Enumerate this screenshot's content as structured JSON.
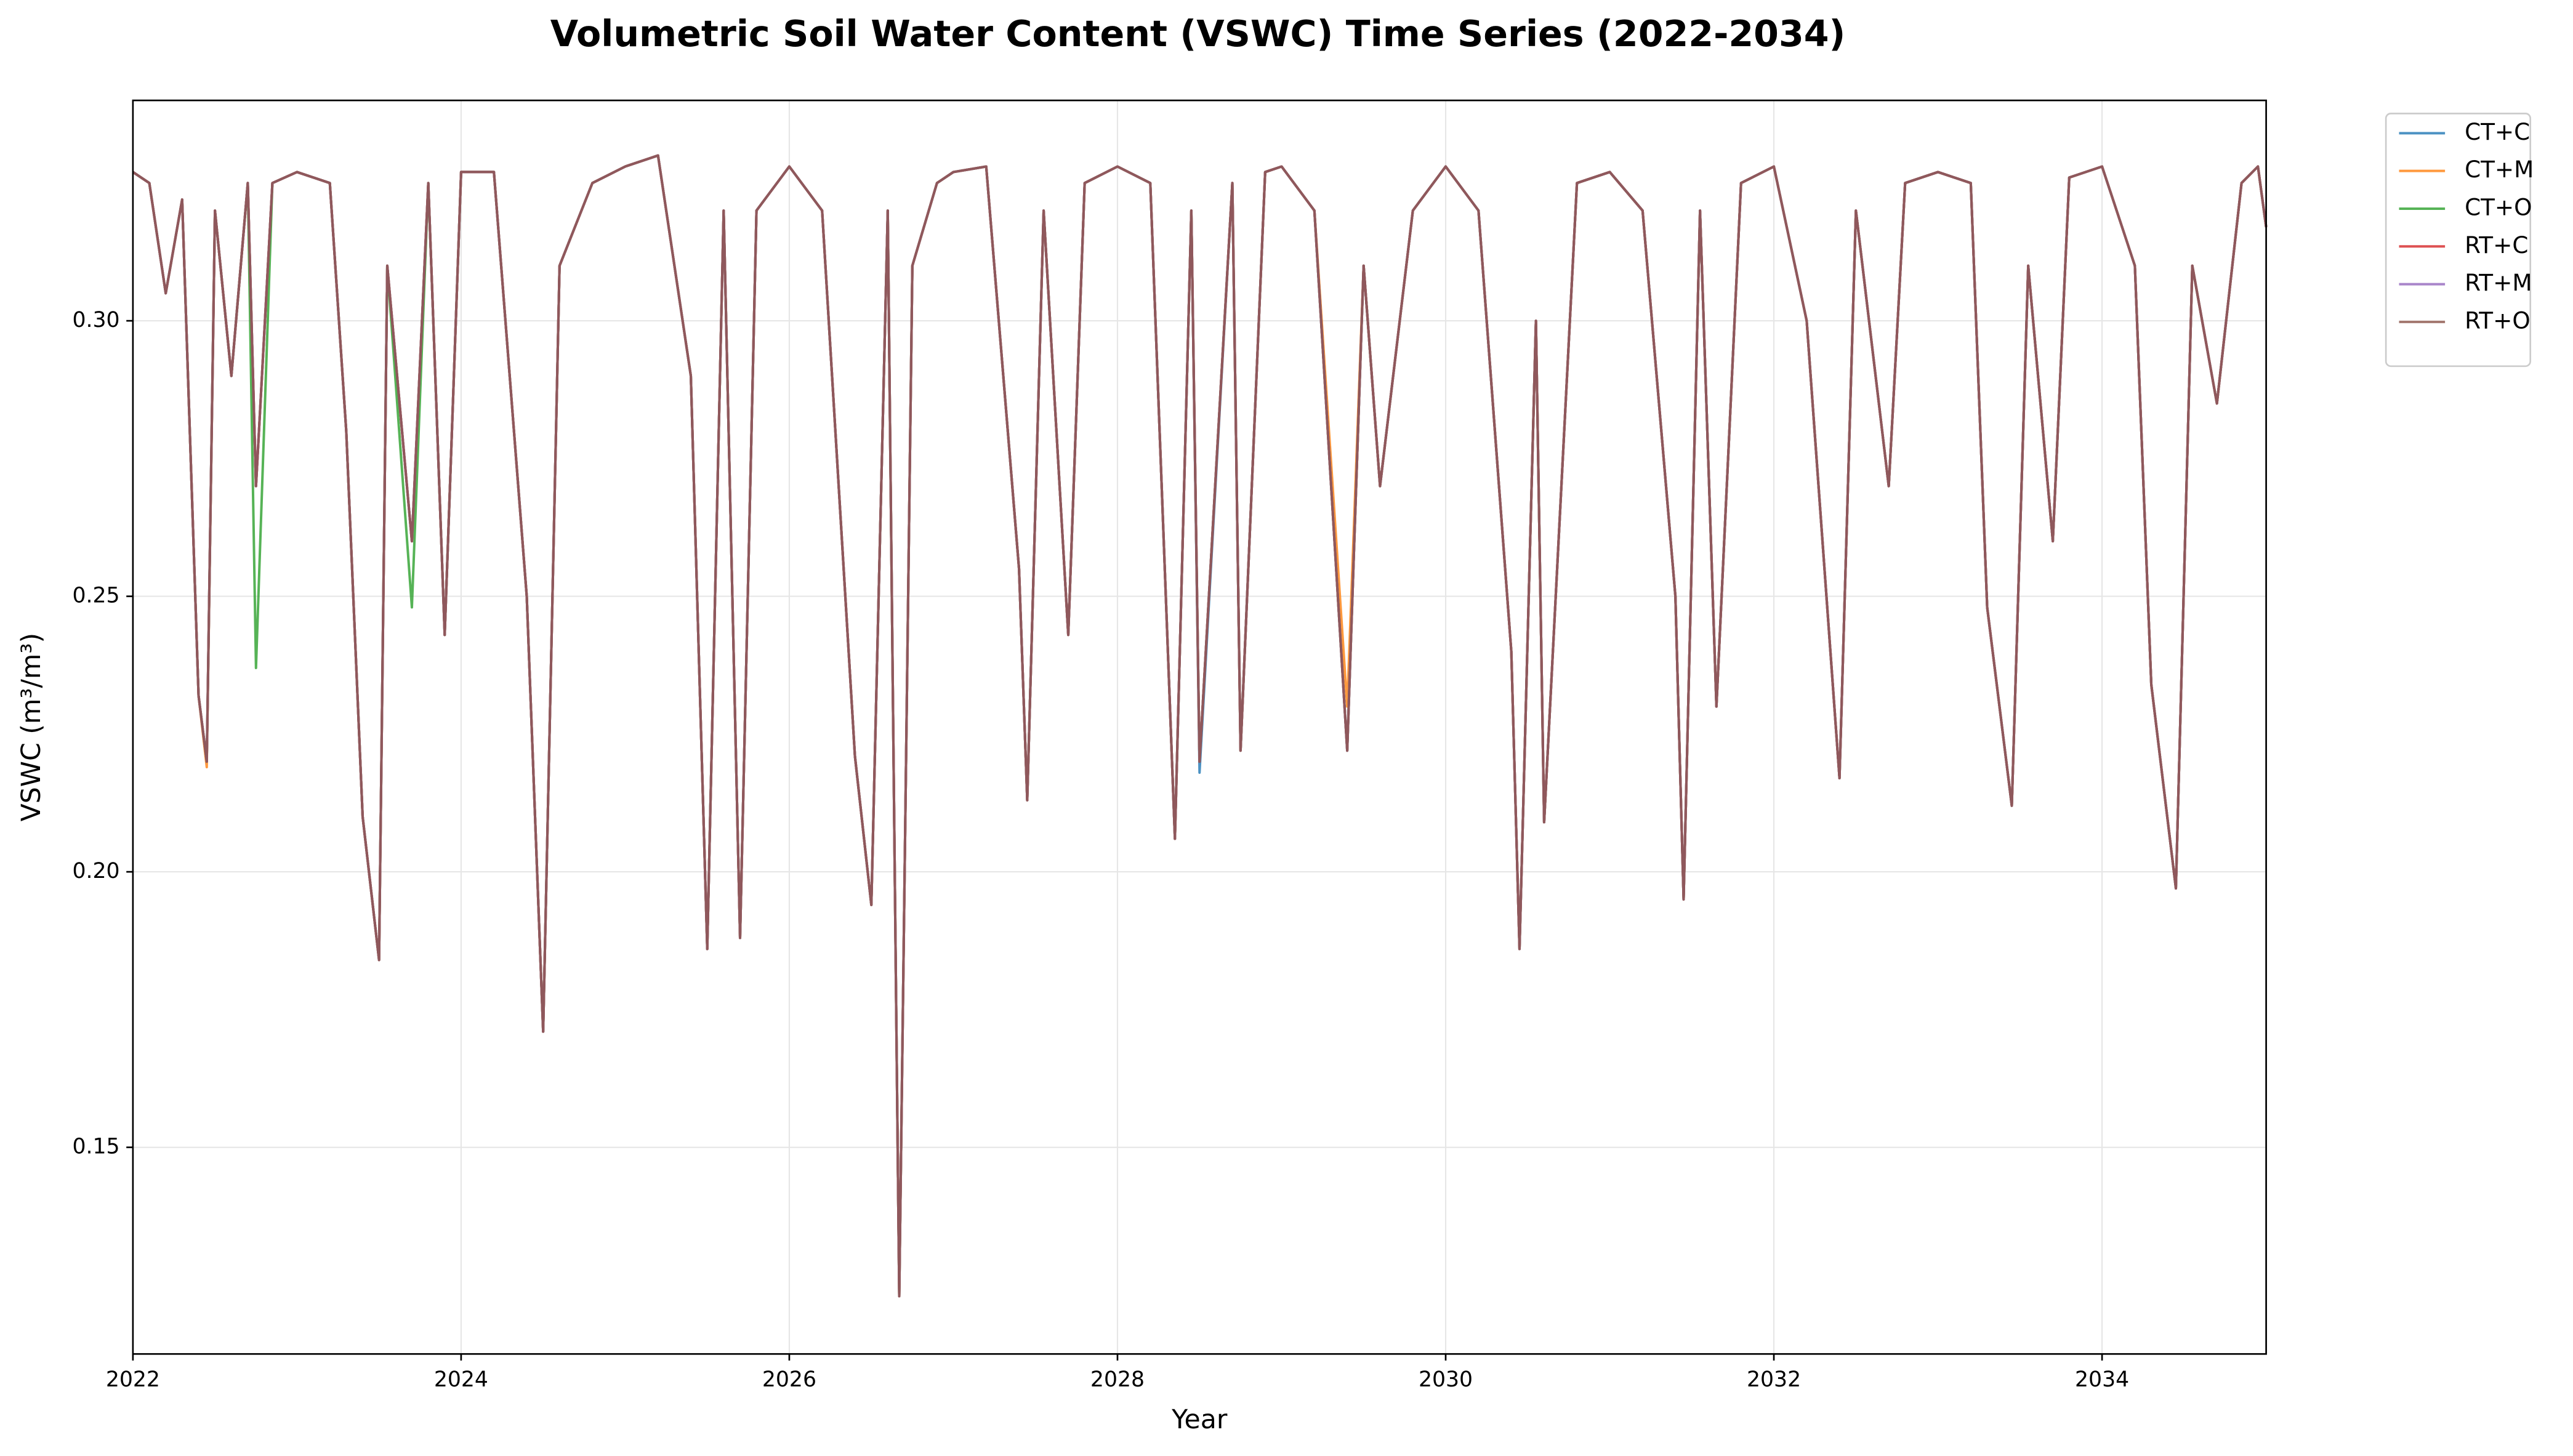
{
  "chart_data": {
    "type": "line",
    "title": "Volumetric Soil Water Content (VSWC) Time Series (2022-2034)",
    "xlabel": "Year",
    "ylabel": "VSWC (m³/m³)",
    "x": [
      2022.0,
      2022.1,
      2022.2,
      2022.3,
      2022.4,
      2022.45,
      2022.5,
      2022.6,
      2022.7,
      2022.75,
      2022.85,
      2023.0,
      2023.2,
      2023.3,
      2023.4,
      2023.5,
      2023.55,
      2023.7,
      2023.8,
      2023.9,
      2024.0,
      2024.2,
      2024.4,
      2024.5,
      2024.6,
      2024.8,
      2025.0,
      2025.2,
      2025.4,
      2025.5,
      2025.6,
      2025.7,
      2025.8,
      2026.0,
      2026.2,
      2026.4,
      2026.5,
      2026.6,
      2026.67,
      2026.75,
      2026.9,
      2027.0,
      2027.2,
      2027.4,
      2027.45,
      2027.55,
      2027.7,
      2027.8,
      2028.0,
      2028.2,
      2028.35,
      2028.45,
      2028.5,
      2028.7,
      2028.75,
      2028.9,
      2029.0,
      2029.2,
      2029.4,
      2029.5,
      2029.6,
      2029.8,
      2030.0,
      2030.2,
      2030.4,
      2030.45,
      2030.55,
      2030.6,
      2030.8,
      2031.0,
      2031.2,
      2031.4,
      2031.45,
      2031.55,
      2031.65,
      2031.8,
      2032.0,
      2032.2,
      2032.4,
      2032.5,
      2032.7,
      2032.8,
      2033.0,
      2033.2,
      2033.3,
      2033.45,
      2033.55,
      2033.7,
      2033.8,
      2034.0,
      2034.2,
      2034.3,
      2034.45,
      2034.55,
      2034.7,
      2034.85,
      2034.95,
      2035.0
    ],
    "series": [
      {
        "name": "CT+C",
        "color": "#1f77b4",
        "values": [
          0.327,
          0.325,
          0.305,
          0.322,
          0.232,
          0.22,
          0.32,
          0.29,
          0.325,
          0.27,
          0.325,
          0.327,
          0.325,
          0.28,
          0.21,
          0.184,
          0.31,
          0.26,
          0.325,
          0.243,
          0.327,
          0.327,
          0.25,
          0.171,
          0.31,
          0.325,
          0.328,
          0.33,
          0.29,
          0.186,
          0.32,
          0.188,
          0.32,
          0.328,
          0.32,
          0.221,
          0.194,
          0.32,
          0.123,
          0.31,
          0.325,
          0.327,
          0.328,
          0.255,
          0.213,
          0.32,
          0.243,
          0.325,
          0.328,
          0.325,
          0.206,
          0.32,
          0.218,
          0.325,
          0.222,
          0.327,
          0.328,
          0.32,
          0.222,
          0.31,
          0.27,
          0.32,
          0.328,
          0.32,
          0.24,
          0.186,
          0.3,
          0.209,
          0.325,
          0.327,
          0.32,
          0.25,
          0.195,
          0.32,
          0.23,
          0.325,
          0.328,
          0.3,
          0.217,
          0.32,
          0.27,
          0.325,
          0.327,
          0.325,
          0.248,
          0.212,
          0.31,
          0.26,
          0.326,
          0.328,
          0.31,
          0.234,
          0.197,
          0.31,
          0.285,
          0.325,
          0.328,
          0.317
        ]
      },
      {
        "name": "CT+M",
        "color": "#ff7f0e",
        "values": [
          0.327,
          0.325,
          0.305,
          0.322,
          0.232,
          0.219,
          0.32,
          0.29,
          0.325,
          0.27,
          0.325,
          0.327,
          0.325,
          0.28,
          0.21,
          0.184,
          0.31,
          0.26,
          0.325,
          0.243,
          0.327,
          0.327,
          0.25,
          0.171,
          0.31,
          0.325,
          0.328,
          0.33,
          0.29,
          0.186,
          0.32,
          0.188,
          0.32,
          0.328,
          0.32,
          0.221,
          0.194,
          0.32,
          0.123,
          0.31,
          0.325,
          0.327,
          0.328,
          0.255,
          0.213,
          0.32,
          0.243,
          0.325,
          0.328,
          0.325,
          0.206,
          0.32,
          0.22,
          0.325,
          0.222,
          0.327,
          0.328,
          0.32,
          0.23,
          0.31,
          0.27,
          0.32,
          0.328,
          0.32,
          0.24,
          0.186,
          0.3,
          0.209,
          0.325,
          0.327,
          0.32,
          0.25,
          0.195,
          0.32,
          0.23,
          0.325,
          0.328,
          0.3,
          0.217,
          0.32,
          0.27,
          0.325,
          0.327,
          0.325,
          0.248,
          0.212,
          0.31,
          0.26,
          0.326,
          0.328,
          0.31,
          0.234,
          0.197,
          0.31,
          0.285,
          0.325,
          0.328,
          0.317
        ]
      },
      {
        "name": "CT+O",
        "color": "#2ca02c",
        "values": [
          0.327,
          0.325,
          0.305,
          0.322,
          0.232,
          0.22,
          0.32,
          0.29,
          0.325,
          0.237,
          0.325,
          0.327,
          0.325,
          0.28,
          0.21,
          0.184,
          0.31,
          0.248,
          0.325,
          0.243,
          0.327,
          0.327,
          0.25,
          0.171,
          0.31,
          0.325,
          0.328,
          0.33,
          0.29,
          0.186,
          0.32,
          0.188,
          0.32,
          0.328,
          0.32,
          0.221,
          0.194,
          0.32,
          0.123,
          0.31,
          0.325,
          0.327,
          0.328,
          0.255,
          0.213,
          0.32,
          0.243,
          0.325,
          0.328,
          0.325,
          0.206,
          0.32,
          0.22,
          0.325,
          0.222,
          0.327,
          0.328,
          0.32,
          0.222,
          0.31,
          0.27,
          0.32,
          0.328,
          0.32,
          0.24,
          0.186,
          0.3,
          0.209,
          0.325,
          0.327,
          0.32,
          0.25,
          0.195,
          0.32,
          0.23,
          0.325,
          0.328,
          0.3,
          0.217,
          0.32,
          0.27,
          0.325,
          0.327,
          0.325,
          0.248,
          0.212,
          0.31,
          0.26,
          0.326,
          0.328,
          0.31,
          0.234,
          0.197,
          0.31,
          0.285,
          0.325,
          0.328,
          0.317
        ]
      },
      {
        "name": "RT+C",
        "color": "#d62728",
        "values": [
          0.327,
          0.325,
          0.305,
          0.322,
          0.232,
          0.22,
          0.32,
          0.29,
          0.325,
          0.27,
          0.325,
          0.327,
          0.325,
          0.28,
          0.21,
          0.184,
          0.31,
          0.26,
          0.325,
          0.243,
          0.327,
          0.327,
          0.25,
          0.171,
          0.31,
          0.325,
          0.328,
          0.33,
          0.29,
          0.186,
          0.32,
          0.188,
          0.32,
          0.328,
          0.32,
          0.221,
          0.194,
          0.32,
          0.123,
          0.31,
          0.325,
          0.327,
          0.328,
          0.255,
          0.213,
          0.32,
          0.243,
          0.325,
          0.328,
          0.325,
          0.206,
          0.32,
          0.22,
          0.325,
          0.222,
          0.327,
          0.328,
          0.32,
          0.222,
          0.31,
          0.27,
          0.32,
          0.328,
          0.32,
          0.24,
          0.186,
          0.3,
          0.209,
          0.325,
          0.327,
          0.32,
          0.25,
          0.195,
          0.32,
          0.23,
          0.325,
          0.328,
          0.3,
          0.217,
          0.32,
          0.27,
          0.325,
          0.327,
          0.325,
          0.248,
          0.212,
          0.31,
          0.26,
          0.326,
          0.328,
          0.31,
          0.234,
          0.197,
          0.31,
          0.285,
          0.325,
          0.328,
          0.317
        ]
      },
      {
        "name": "RT+M",
        "color": "#9467bd",
        "values": [
          0.327,
          0.325,
          0.305,
          0.322,
          0.232,
          0.22,
          0.32,
          0.29,
          0.325,
          0.27,
          0.325,
          0.327,
          0.325,
          0.28,
          0.21,
          0.184,
          0.31,
          0.26,
          0.325,
          0.243,
          0.327,
          0.327,
          0.25,
          0.171,
          0.31,
          0.325,
          0.328,
          0.33,
          0.29,
          0.186,
          0.32,
          0.188,
          0.32,
          0.328,
          0.32,
          0.221,
          0.194,
          0.32,
          0.123,
          0.31,
          0.325,
          0.327,
          0.328,
          0.255,
          0.213,
          0.32,
          0.243,
          0.325,
          0.328,
          0.325,
          0.206,
          0.32,
          0.22,
          0.325,
          0.222,
          0.327,
          0.328,
          0.32,
          0.222,
          0.31,
          0.27,
          0.32,
          0.328,
          0.32,
          0.24,
          0.186,
          0.3,
          0.209,
          0.325,
          0.327,
          0.32,
          0.25,
          0.195,
          0.32,
          0.23,
          0.325,
          0.328,
          0.3,
          0.217,
          0.32,
          0.27,
          0.325,
          0.327,
          0.325,
          0.248,
          0.212,
          0.31,
          0.26,
          0.326,
          0.328,
          0.31,
          0.234,
          0.197,
          0.31,
          0.285,
          0.325,
          0.328,
          0.317
        ]
      },
      {
        "name": "RT+O",
        "color": "#8c564b",
        "values": [
          0.327,
          0.325,
          0.305,
          0.322,
          0.232,
          0.22,
          0.32,
          0.29,
          0.325,
          0.27,
          0.325,
          0.327,
          0.325,
          0.28,
          0.21,
          0.184,
          0.31,
          0.26,
          0.325,
          0.243,
          0.327,
          0.327,
          0.25,
          0.171,
          0.31,
          0.325,
          0.328,
          0.33,
          0.29,
          0.186,
          0.32,
          0.188,
          0.32,
          0.328,
          0.32,
          0.221,
          0.194,
          0.32,
          0.123,
          0.31,
          0.325,
          0.327,
          0.328,
          0.255,
          0.213,
          0.32,
          0.243,
          0.325,
          0.328,
          0.325,
          0.206,
          0.32,
          0.22,
          0.325,
          0.222,
          0.327,
          0.328,
          0.32,
          0.222,
          0.31,
          0.27,
          0.32,
          0.328,
          0.32,
          0.24,
          0.186,
          0.3,
          0.209,
          0.325,
          0.327,
          0.32,
          0.25,
          0.195,
          0.32,
          0.23,
          0.325,
          0.328,
          0.3,
          0.217,
          0.32,
          0.27,
          0.325,
          0.327,
          0.325,
          0.248,
          0.212,
          0.31,
          0.26,
          0.326,
          0.328,
          0.31,
          0.234,
          0.197,
          0.31,
          0.285,
          0.325,
          0.328,
          0.317
        ]
      }
    ],
    "xlim": [
      2022,
      2035
    ],
    "xticks": [
      2022,
      2024,
      2026,
      2028,
      2030,
      2032,
      2034
    ],
    "ylim": [
      0.1125,
      0.34
    ],
    "yticks": [
      0.15,
      {
        "value": 0.2,
        "label": "0.20"
      },
      0.25,
      {
        "value": 0.3,
        "label": "0.30"
      }
    ],
    "grid": true,
    "legend": "outside upper right"
  }
}
